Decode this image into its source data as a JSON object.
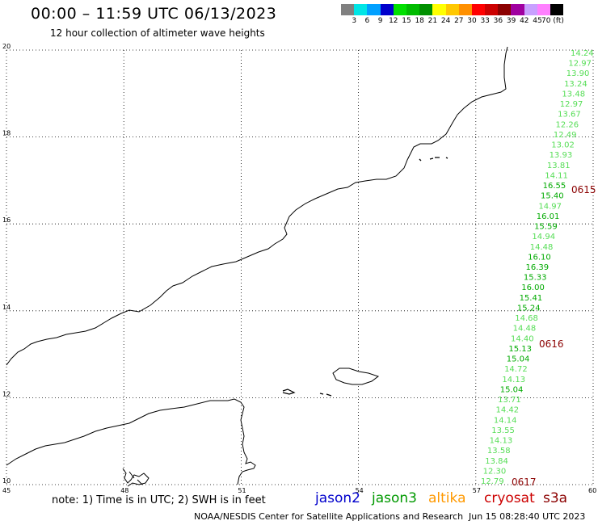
{
  "header": {
    "title": "00:00 – 11:59 UTC 06/13/2023",
    "subtitle": "12 hour collection of altimeter wave heights"
  },
  "colorbar": {
    "colors": [
      "#808080",
      "#00e5e5",
      "#00a0ff",
      "#0000cc",
      "#00e000",
      "#00bb00",
      "#009000",
      "#ffff00",
      "#ffc800",
      "#ff9000",
      "#ff0000",
      "#cc0000",
      "#8b0000",
      "#a000a0",
      "#c8a0ff",
      "#ff80ff",
      "#000000"
    ],
    "labels": [
      "3",
      "6",
      "9",
      "12",
      "15",
      "18",
      "21",
      "24",
      "27",
      "30",
      "33",
      "36",
      "39",
      "42",
      "45",
      "70 (ft)"
    ]
  },
  "axes": {
    "x_ticks": [
      "45",
      "48",
      "51",
      "54",
      "57",
      "60"
    ],
    "y_ticks": [
      "20",
      "18",
      "16",
      "14",
      "12",
      "10"
    ],
    "lon_range": [
      45,
      60
    ],
    "lat_range": [
      10,
      20
    ]
  },
  "satellite_track": {
    "points": [
      {
        "value": "14.24",
        "color": "#55dd55"
      },
      {
        "value": "12.97",
        "color": "#55dd55"
      },
      {
        "value": "13.90",
        "color": "#55dd55"
      },
      {
        "value": "13.24",
        "color": "#55dd55"
      },
      {
        "value": "13.48",
        "color": "#55dd55"
      },
      {
        "value": "12.97",
        "color": "#55dd55"
      },
      {
        "value": "13.67",
        "color": "#55dd55"
      },
      {
        "value": "12.26",
        "color": "#55dd55"
      },
      {
        "value": "12.49",
        "color": "#55dd55"
      },
      {
        "value": "13.02",
        "color": "#55dd55"
      },
      {
        "value": "13.93",
        "color": "#55dd55"
      },
      {
        "value": "13.81",
        "color": "#55dd55"
      },
      {
        "value": "14.11",
        "color": "#55dd55"
      },
      {
        "value": "16.55",
        "color": "#00aa00"
      },
      {
        "value": "15.40",
        "color": "#00aa00"
      },
      {
        "value": "14.97",
        "color": "#55dd55"
      },
      {
        "value": "16.01",
        "color": "#00aa00"
      },
      {
        "value": "15.59",
        "color": "#00aa00"
      },
      {
        "value": "14.94",
        "color": "#55dd55"
      },
      {
        "value": "14.48",
        "color": "#55dd55"
      },
      {
        "value": "16.10",
        "color": "#00aa00"
      },
      {
        "value": "16.39",
        "color": "#00aa00"
      },
      {
        "value": "15.33",
        "color": "#00aa00"
      },
      {
        "value": "16.00",
        "color": "#00aa00"
      },
      {
        "value": "15.41",
        "color": "#00aa00"
      },
      {
        "value": "15.24",
        "color": "#00aa00"
      },
      {
        "value": "14.68",
        "color": "#55dd55"
      },
      {
        "value": "14.48",
        "color": "#55dd55"
      },
      {
        "value": "14.40",
        "color": "#55dd55"
      },
      {
        "value": "15.13",
        "color": "#00aa00"
      },
      {
        "value": "15.04",
        "color": "#00aa00"
      },
      {
        "value": "14.72",
        "color": "#55dd55"
      },
      {
        "value": "14.13",
        "color": "#55dd55"
      },
      {
        "value": "15.04",
        "color": "#00aa00"
      },
      {
        "value": "13.71",
        "color": "#55dd55"
      },
      {
        "value": "14.42",
        "color": "#55dd55"
      },
      {
        "value": "14.14",
        "color": "#55dd55"
      },
      {
        "value": "13.55",
        "color": "#55dd55"
      },
      {
        "value": "14.13",
        "color": "#55dd55"
      },
      {
        "value": "13.58",
        "color": "#55dd55"
      },
      {
        "value": "13.84",
        "color": "#55dd55"
      },
      {
        "value": "12.30",
        "color": "#55dd55"
      },
      {
        "value": "12.79",
        "color": "#55dd55"
      }
    ],
    "pass_labels": [
      "0615",
      "0616",
      "0617"
    ]
  },
  "footer": {
    "note": "note:  1) Time is in UTC; 2) SWH is in feet",
    "satellites": [
      {
        "name": "jason2",
        "color": "#0000cc"
      },
      {
        "name": "jason3",
        "color": "#009900"
      },
      {
        "name": "altika",
        "color": "#ff9900"
      },
      {
        "name": "cryosat",
        "color": "#cc0000"
      },
      {
        "name": "s3a",
        "color": "#8b0000"
      }
    ],
    "credit": "NOAA/NESDIS Center for Satellite Applications and Research",
    "timestamp": "Jun 15 08:28:40 UTC 2023"
  }
}
